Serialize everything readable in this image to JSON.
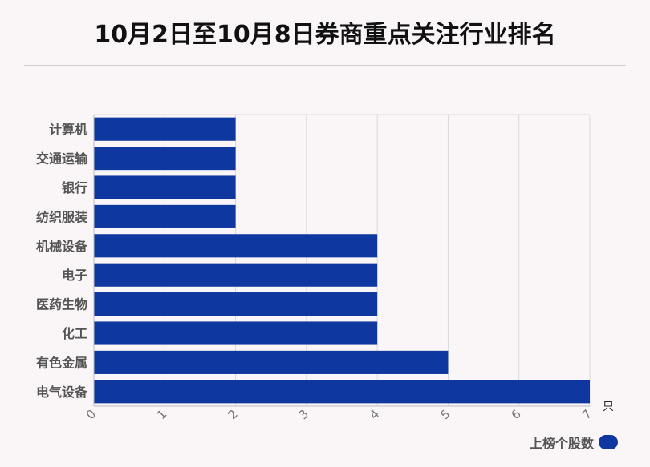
{
  "chart_data": {
    "type": "bar",
    "orientation": "horizontal",
    "title": "10月2日至10月8日券商重点关注行业排名",
    "categories": [
      "计算机",
      "交通运输",
      "银行",
      "纺织服装",
      "机械设备",
      "电子",
      "医药生物",
      "化工",
      "有色金属",
      "电气设备"
    ],
    "series": [
      {
        "name": "上榜个股数",
        "values": [
          2,
          2,
          2,
          2,
          4,
          4,
          4,
          4,
          5,
          7
        ]
      }
    ],
    "xlim": [
      0,
      7
    ],
    "xticks": [
      "0",
      "1",
      "2",
      "3",
      "4",
      "5",
      "6",
      "7"
    ],
    "xunit": "只",
    "grid": true,
    "legend": "bottom-right",
    "colors": {
      "bar": "#0f37a0",
      "grid": "#d9d9d9",
      "axis": "#bbbbbb"
    }
  }
}
